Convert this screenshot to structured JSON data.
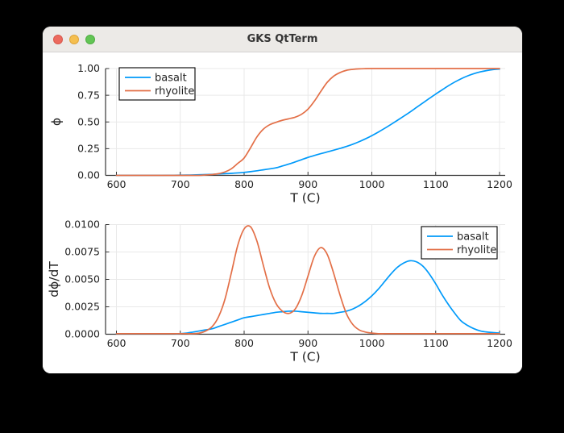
{
  "window": {
    "title": "GKS QtTerm",
    "background_color": "#000000",
    "titlebar_color": "#eceae7",
    "traffic_lights": [
      {
        "name": "close",
        "color": "#ec6a5e"
      },
      {
        "name": "minimize",
        "color": "#f5bf4f"
      },
      {
        "name": "zoom",
        "color": "#62c554"
      }
    ]
  },
  "colors": {
    "basalt": "#009AFA",
    "rhyolite": "#E36F47",
    "grid": "#e9e9e9",
    "axis": "#363636",
    "text": "#1f1f1f",
    "legend_border": "#000000"
  },
  "chart_data": [
    {
      "type": "line",
      "title": "",
      "xlabel": "T (C)",
      "ylabel": "ϕ",
      "xlim": [
        600,
        1200
      ],
      "ylim": [
        0,
        1
      ],
      "grid": true,
      "legend_position": "top-left",
      "legend_entries": [
        "basalt",
        "rhyolite"
      ],
      "xticks": [
        600,
        700,
        800,
        900,
        1000,
        1100,
        1200
      ],
      "yticks": [
        0,
        0.25,
        0.5,
        0.75,
        1.0
      ],
      "ytick_labels": [
        "0.00",
        "0.25",
        "0.50",
        "0.75",
        "1.00"
      ],
      "x": [
        600,
        610,
        620,
        630,
        640,
        650,
        660,
        670,
        680,
        690,
        700,
        710,
        720,
        730,
        740,
        750,
        760,
        770,
        780,
        790,
        800,
        810,
        820,
        830,
        840,
        850,
        860,
        870,
        880,
        890,
        900,
        910,
        920,
        930,
        940,
        950,
        960,
        970,
        980,
        990,
        1000,
        1010,
        1020,
        1030,
        1040,
        1050,
        1060,
        1070,
        1080,
        1090,
        1100,
        1110,
        1120,
        1130,
        1140,
        1150,
        1160,
        1170,
        1180,
        1190,
        1200
      ],
      "series": [
        {
          "name": "basalt",
          "color": "#009AFA",
          "values": [
            0,
            0,
            0,
            0,
            0,
            0,
            0,
            0,
            0.001,
            0.001,
            0.002,
            0.003,
            0.004,
            0.006,
            0.008,
            0.01,
            0.013,
            0.016,
            0.019,
            0.023,
            0.028,
            0.035,
            0.043,
            0.052,
            0.061,
            0.071,
            0.088,
            0.106,
            0.126,
            0.147,
            0.168,
            0.186,
            0.203,
            0.219,
            0.235,
            0.252,
            0.27,
            0.291,
            0.315,
            0.342,
            0.372,
            0.405,
            0.44,
            0.477,
            0.515,
            0.554,
            0.594,
            0.636,
            0.678,
            0.72,
            0.761,
            0.8,
            0.839,
            0.874,
            0.905,
            0.931,
            0.952,
            0.969,
            0.981,
            0.99,
            0.995
          ]
        },
        {
          "name": "rhyolite",
          "color": "#E36F47",
          "values": [
            0,
            0,
            0,
            0,
            0,
            0,
            0,
            0,
            0,
            0,
            0,
            0,
            0,
            0,
            0.004,
            0.008,
            0.016,
            0.032,
            0.062,
            0.112,
            0.163,
            0.258,
            0.36,
            0.432,
            0.474,
            0.497,
            0.516,
            0.53,
            0.545,
            0.572,
            0.62,
            0.695,
            0.785,
            0.87,
            0.928,
            0.962,
            0.983,
            0.992,
            0.997,
            0.999,
            1,
            1,
            1,
            1,
            1,
            1,
            1,
            1,
            1,
            1,
            1,
            1,
            1,
            1,
            1,
            1,
            1,
            1,
            1,
            1,
            1
          ]
        }
      ]
    },
    {
      "type": "line",
      "title": "",
      "xlabel": "T (C)",
      "ylabel": "dϕ/dT",
      "xlim": [
        600,
        1200
      ],
      "ylim": [
        0,
        0.01
      ],
      "grid": true,
      "legend_position": "top-right",
      "legend_entries": [
        "basalt",
        "rhyolite"
      ],
      "xticks": [
        600,
        700,
        800,
        900,
        1000,
        1100,
        1200
      ],
      "yticks": [
        0,
        0.0025,
        0.005,
        0.0075,
        0.01
      ],
      "ytick_labels": [
        "0.0000",
        "0.0025",
        "0.0050",
        "0.0075",
        "0.0100"
      ],
      "x": [
        600,
        610,
        620,
        630,
        640,
        650,
        660,
        670,
        680,
        690,
        700,
        710,
        720,
        730,
        740,
        750,
        760,
        770,
        780,
        790,
        800,
        810,
        820,
        830,
        840,
        850,
        860,
        870,
        880,
        890,
        900,
        910,
        920,
        930,
        940,
        950,
        960,
        970,
        980,
        990,
        1000,
        1010,
        1020,
        1030,
        1040,
        1050,
        1060,
        1070,
        1080,
        1090,
        1100,
        1110,
        1120,
        1130,
        1140,
        1150,
        1160,
        1170,
        1180,
        1190,
        1200
      ],
      "series": [
        {
          "name": "basalt",
          "color": "#009AFA",
          "values": [
            5e-05,
            5e-05,
            5e-05,
            5e-05,
            5e-05,
            5e-05,
            5e-05,
            5e-05,
            5e-05,
            5e-05,
            5e-05,
            0.0001,
            0.0002,
            0.0003,
            0.0004,
            0.0005,
            0.0007,
            0.0009,
            0.0011,
            0.0013,
            0.0015,
            0.0016,
            0.0017,
            0.0018,
            0.0019,
            0.002,
            0.00205,
            0.0021,
            0.0021,
            0.00205,
            0.002,
            0.00195,
            0.0019,
            0.0019,
            0.0019,
            0.002,
            0.0021,
            0.0023,
            0.0026,
            0.003,
            0.0035,
            0.0041,
            0.0048,
            0.0055,
            0.0061,
            0.0065,
            0.0067,
            0.0066,
            0.0062,
            0.0055,
            0.0046,
            0.0036,
            0.0027,
            0.0019,
            0.0012,
            0.0008,
            0.0005,
            0.0003,
            0.0002,
            0.00015,
            0.0001
          ]
        },
        {
          "name": "rhyolite",
          "color": "#E36F47",
          "values": [
            5e-05,
            5e-05,
            5e-05,
            5e-05,
            5e-05,
            5e-05,
            5e-05,
            5e-05,
            5e-05,
            5e-05,
            5e-05,
            5e-05,
            5e-05,
            0.0001,
            0.0003,
            0.0007,
            0.0016,
            0.0032,
            0.0056,
            0.0081,
            0.0096,
            0.0098,
            0.0085,
            0.0063,
            0.0042,
            0.0028,
            0.0021,
            0.0019,
            0.0023,
            0.0035,
            0.0053,
            0.0071,
            0.0079,
            0.0073,
            0.0056,
            0.0036,
            0.0019,
            0.0009,
            0.0004,
            0.0002,
            0.0001,
            5e-05,
            5e-05,
            5e-05,
            5e-05,
            5e-05,
            5e-05,
            5e-05,
            5e-05,
            5e-05,
            5e-05,
            5e-05,
            5e-05,
            5e-05,
            5e-05,
            5e-05,
            5e-05,
            5e-05,
            5e-05,
            5e-05,
            5e-05
          ]
        }
      ]
    }
  ]
}
